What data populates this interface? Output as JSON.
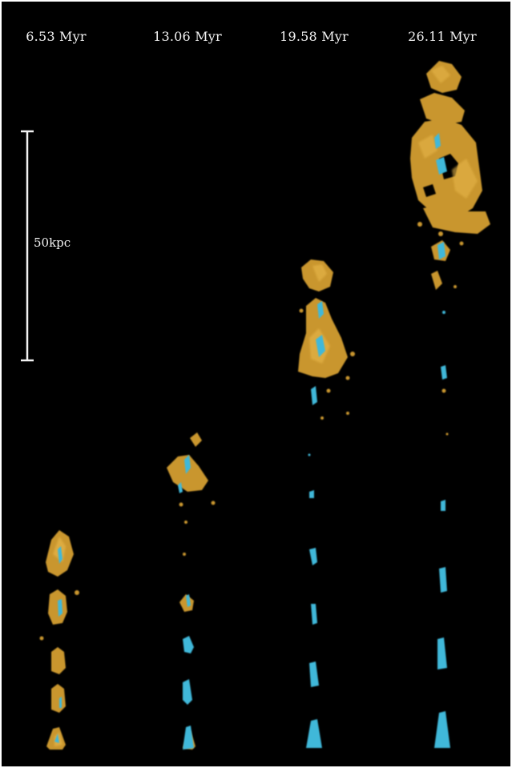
{
  "figure": {
    "time_labels": [
      "6.53 Myr",
      "13.06 Myr",
      "19.58 Myr",
      "26.11 Myr"
    ],
    "scale_bar_label": "50kpc"
  },
  "colors": {
    "background": "#000000",
    "gas": "#c9962f",
    "gas_highlight": "#e6b54a",
    "jet": "#3fb8d9",
    "text": "#f2f2f2"
  }
}
